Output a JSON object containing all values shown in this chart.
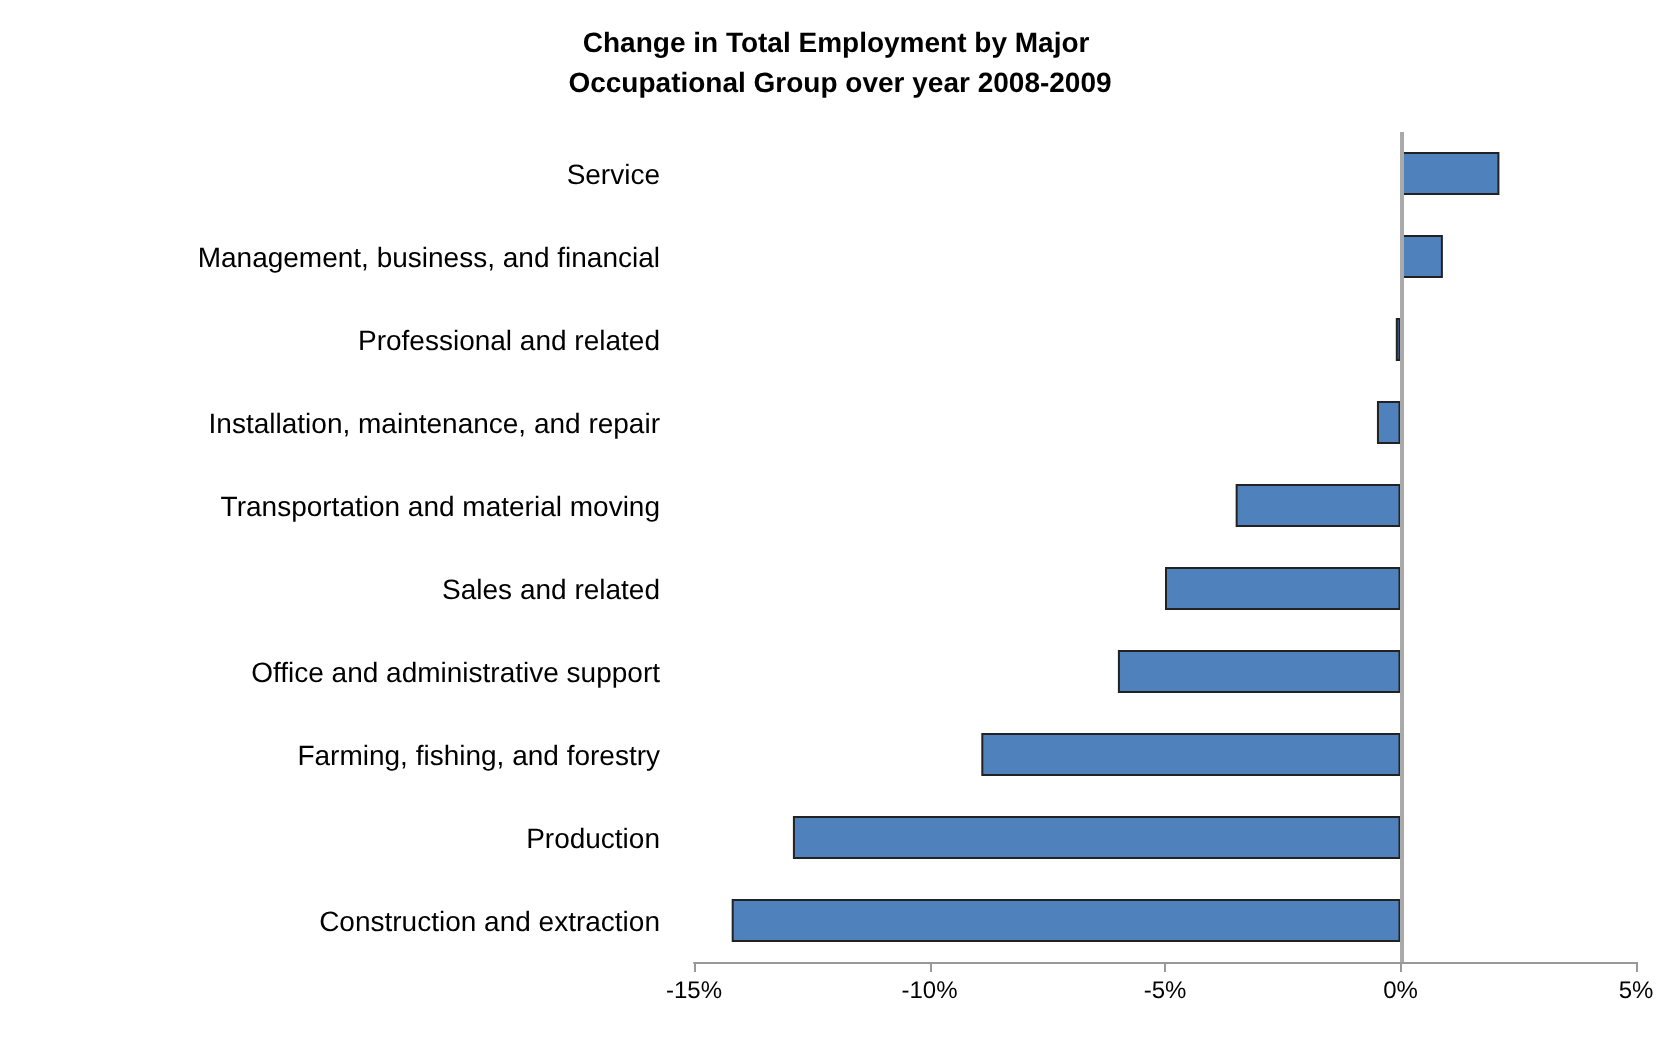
{
  "chart_data": {
    "type": "bar",
    "orientation": "horizontal",
    "title": "Change in Total Employment by Major Occupational Group over year 2008-2009",
    "categories": [
      "Service",
      "Management, business, and financial",
      "Professional and related",
      "Installation, maintenance, and repair",
      "Transportation and material moving",
      "Sales and related",
      "Office and administrative support",
      "Farming, fishing, and forestry",
      "Production",
      "Construction and extraction"
    ],
    "values": [
      2.1,
      0.9,
      -0.1,
      -0.5,
      -3.5,
      -5.0,
      -6.0,
      -8.9,
      -12.9,
      -14.2
    ],
    "color": "#4f81bd",
    "xlim": [
      -15,
      5
    ],
    "xticks": [
      {
        "value": -15,
        "label": "-15%"
      },
      {
        "value": -10,
        "label": "-10%"
      },
      {
        "value": -5,
        "label": "-5%"
      },
      {
        "value": 0,
        "label": "0%"
      },
      {
        "value": 5,
        "label": "5%"
      }
    ],
    "ref_lines": [
      {
        "axis": "x",
        "value": 0,
        "color": "#aaaaaa"
      }
    ],
    "grid": false
  }
}
